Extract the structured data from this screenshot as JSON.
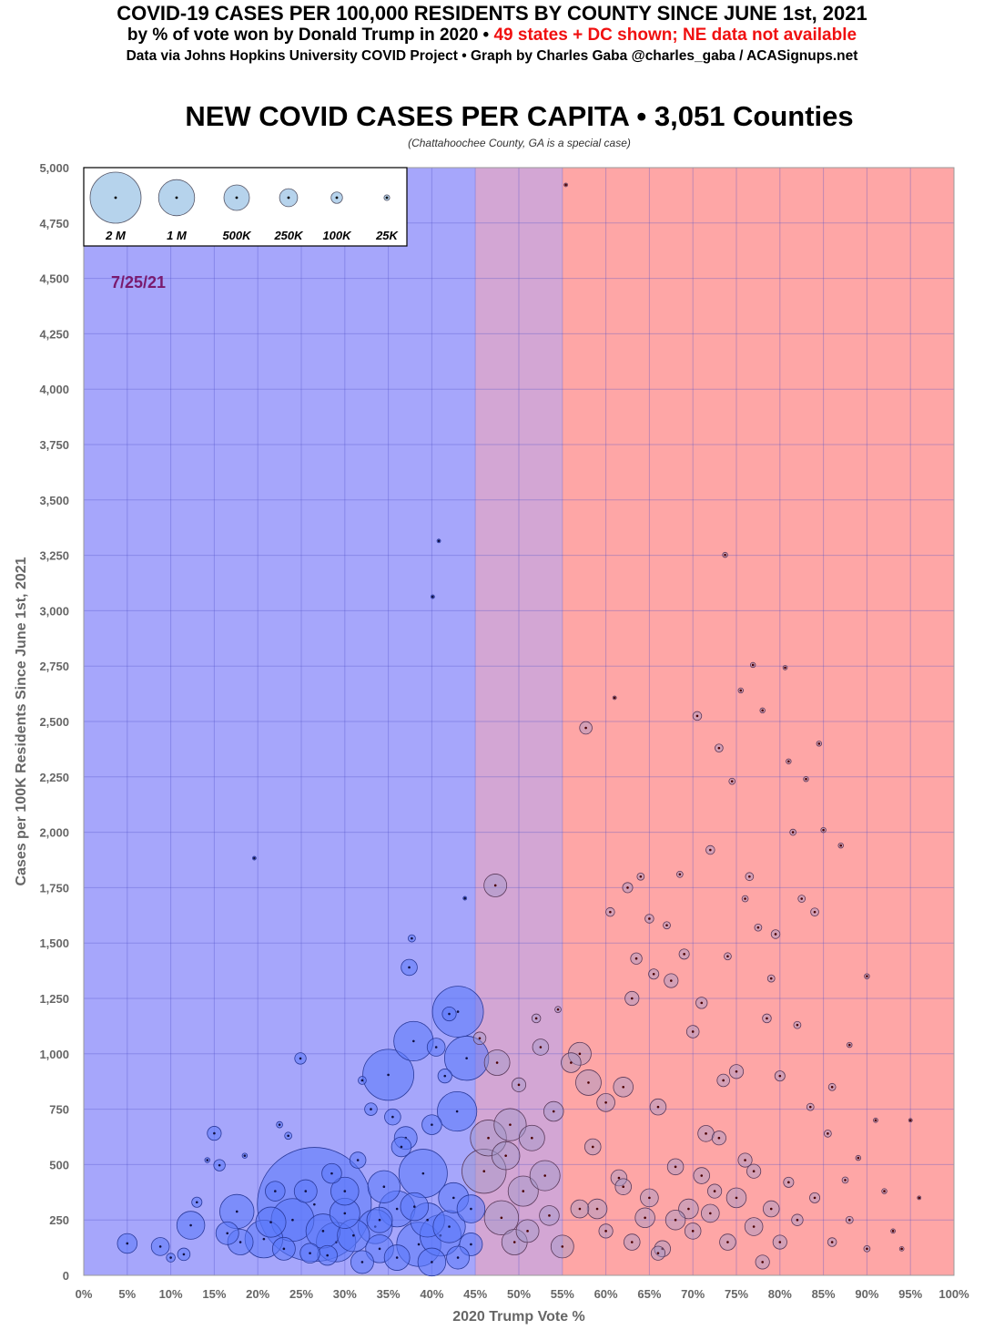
{
  "header": {
    "title": "COVID-19 CASES PER 100,000 RESIDENTS BY COUNTY SINCE JUNE 1st, 2021",
    "subtitle_black": "by % of vote won by Donald Trump in 2020 •",
    "subtitle_red": "49 states + DC shown; NE data not available",
    "credits": "Data via Johns Hopkins University COVID Project • Graph by Charles Gaba @charles_gaba / ACASignups.net",
    "chart_title": "NEW COVID CASES PER CAPITA • 3,051 Counties",
    "note": "(Chattahoochee County, GA is a special case)"
  },
  "colors": {
    "dem_zone": "#a6a6fb",
    "swing_zone": "#d3a6d4",
    "gop_zone": "#fea6a6",
    "bubble_fill": "#6e86f0",
    "date": "#7a1a6e"
  },
  "chart_data": {
    "type": "scatter",
    "title": "NEW COVID CASES PER CAPITA • 3,051 Counties",
    "xlabel": "2020 Trump Vote %",
    "ylabel": "Cases per 100K Residents Since June 1st, 2021",
    "xlim": [
      0,
      100
    ],
    "ylim": [
      0,
      5000
    ],
    "x_ticks": [
      "0%",
      "5%",
      "10%",
      "15%",
      "20%",
      "25%",
      "30%",
      "35%",
      "40%",
      "45%",
      "50%",
      "55%",
      "60%",
      "65%",
      "70%",
      "75%",
      "80%",
      "85%",
      "90%",
      "95%",
      "100%"
    ],
    "y_ticks": [
      "0",
      "250",
      "500",
      "750",
      "1,000",
      "1,250",
      "1,500",
      "1,750",
      "2,000",
      "2,250",
      "2,500",
      "2,750",
      "3,000",
      "3,250",
      "3,500",
      "3,750",
      "4,000",
      "4,250",
      "4,500",
      "4,750",
      "5,000"
    ],
    "grid": true,
    "zones": [
      {
        "name": "dem",
        "from": 0,
        "to": 45
      },
      {
        "name": "swing",
        "from": 45,
        "to": 55
      },
      {
        "name": "gop",
        "from": 55,
        "to": 100
      }
    ],
    "annotation": "7/25/21",
    "size_legend": {
      "placement": "top-left",
      "entries": [
        {
          "label": "2 M",
          "population_k": 2000
        },
        {
          "label": "1 M",
          "population_k": 1000
        },
        {
          "label": "500K",
          "population_k": 500
        },
        {
          "label": "250K",
          "population_k": 250
        },
        {
          "label": "100K",
          "population_k": 100
        },
        {
          "label": "25K",
          "population_k": 25
        }
      ]
    },
    "point_fields": [
      "trump_vote_pct",
      "cases_per_100k",
      "population_k"
    ],
    "points": [
      [
        5,
        144,
        300
      ],
      [
        8.8,
        130,
        250
      ],
      [
        10,
        80,
        60
      ],
      [
        11.5,
        95,
        120
      ],
      [
        12.3,
        226,
        600
      ],
      [
        13,
        330,
        80
      ],
      [
        14.2,
        520,
        20
      ],
      [
        15,
        641,
        150
      ],
      [
        15.6,
        497,
        100
      ],
      [
        16.5,
        190,
        400
      ],
      [
        17.6,
        288,
        900
      ],
      [
        18,
        150,
        500
      ],
      [
        18.5,
        540,
        20
      ],
      [
        19.6,
        1883,
        10
      ],
      [
        20.7,
        164,
        1100
      ],
      [
        21.5,
        240,
        700
      ],
      [
        22,
        380,
        300
      ],
      [
        22.5,
        680,
        30
      ],
      [
        23,
        120,
        400
      ],
      [
        23.5,
        630,
        40
      ],
      [
        24,
        250,
        1400
      ],
      [
        24.9,
        979,
        100
      ],
      [
        25.5,
        380,
        400
      ],
      [
        26.5,
        320,
        10000
      ],
      [
        27.5,
        200,
        900
      ],
      [
        28.5,
        460,
        300
      ],
      [
        29,
        150,
        1200
      ],
      [
        30,
        280,
        700
      ],
      [
        31,
        180,
        800
      ],
      [
        31.5,
        520,
        200
      ],
      [
        32,
        880,
        50
      ],
      [
        33,
        750,
        120
      ],
      [
        33.5,
        220,
        900
      ],
      [
        34,
        120,
        600
      ],
      [
        34.5,
        400,
        800
      ],
      [
        35,
        905,
        2000
      ],
      [
        35.5,
        715,
        200
      ],
      [
        36,
        300,
        1000
      ],
      [
        36.5,
        580,
        300
      ],
      [
        37,
        620,
        400
      ],
      [
        37.4,
        1390,
        200
      ],
      [
        37.7,
        1521,
        40
      ],
      [
        37.9,
        1057,
        1200
      ],
      [
        38.5,
        140,
        1500
      ],
      [
        39,
        460,
        1800
      ],
      [
        39.5,
        250,
        900
      ],
      [
        40,
        680,
        300
      ],
      [
        40.1,
        3063,
        10
      ],
      [
        40.5,
        1030,
        250
      ],
      [
        40.8,
        3315,
        10
      ],
      [
        41,
        180,
        1300
      ],
      [
        41.5,
        900,
        150
      ],
      [
        42,
        1180,
        150
      ],
      [
        42.5,
        350,
        700
      ],
      [
        42.9,
        740,
        1200
      ],
      [
        43,
        1190,
        2000
      ],
      [
        43.8,
        1702,
        10
      ],
      [
        44,
        980,
        1500
      ],
      [
        44.5,
        300,
        600
      ],
      [
        44.5,
        140,
        400
      ],
      [
        28,
        90,
        300
      ],
      [
        32,
        60,
        400
      ],
      [
        36,
        80,
        500
      ],
      [
        40,
        60,
        600
      ],
      [
        43,
        80,
        400
      ],
      [
        26,
        100,
        300
      ],
      [
        30,
        380,
        600
      ],
      [
        34,
        250,
        500
      ],
      [
        38,
        310,
        600
      ],
      [
        42,
        220,
        800
      ],
      [
        45.5,
        1070,
        120
      ],
      [
        46,
        470,
        1500
      ],
      [
        46.5,
        620,
        1000
      ],
      [
        47.3,
        1760,
        400
      ],
      [
        47.5,
        960,
        500
      ],
      [
        48,
        260,
        900
      ],
      [
        48.5,
        540,
        600
      ],
      [
        49,
        680,
        800
      ],
      [
        49.5,
        150,
        500
      ],
      [
        50,
        860,
        150
      ],
      [
        50.5,
        380,
        700
      ],
      [
        51,
        200,
        400
      ],
      [
        51.5,
        620,
        500
      ],
      [
        52,
        1160,
        60
      ],
      [
        52.5,
        1030,
        200
      ],
      [
        53,
        450,
        700
      ],
      [
        53.5,
        270,
        300
      ],
      [
        54,
        740,
        300
      ],
      [
        54.5,
        1200,
        30
      ],
      [
        55.4,
        4922,
        10
      ],
      [
        55,
        130,
        400
      ],
      [
        56,
        960,
        300
      ],
      [
        57,
        1000,
        400
      ],
      [
        57.7,
        2471,
        120
      ],
      [
        58,
        870,
        500
      ],
      [
        58.5,
        580,
        200
      ],
      [
        59,
        300,
        300
      ],
      [
        60,
        780,
        250
      ],
      [
        60.5,
        1640,
        60
      ],
      [
        61,
        2607,
        10
      ],
      [
        61.5,
        440,
        200
      ],
      [
        62,
        850,
        300
      ],
      [
        62.5,
        1750,
        80
      ],
      [
        63,
        1250,
        150
      ],
      [
        63.5,
        1430,
        100
      ],
      [
        64,
        1800,
        40
      ],
      [
        64.5,
        260,
        300
      ],
      [
        65,
        1610,
        60
      ],
      [
        65.5,
        1360,
        80
      ],
      [
        66,
        760,
        200
      ],
      [
        66.5,
        120,
        200
      ],
      [
        67,
        1580,
        40
      ],
      [
        67.5,
        1330,
        150
      ],
      [
        68,
        490,
        200
      ],
      [
        68.5,
        1810,
        30
      ],
      [
        69,
        1450,
        80
      ],
      [
        69.5,
        300,
        300
      ],
      [
        70,
        1100,
        120
      ],
      [
        70.5,
        2525,
        60
      ],
      [
        71,
        1230,
        100
      ],
      [
        71.5,
        640,
        200
      ],
      [
        72,
        1920,
        60
      ],
      [
        72.5,
        380,
        150
      ],
      [
        73,
        2380,
        50
      ],
      [
        73.5,
        880,
        120
      ],
      [
        74,
        1440,
        40
      ],
      [
        74.5,
        2230,
        30
      ],
      [
        75,
        920,
        150
      ],
      [
        75.5,
        2640,
        20
      ],
      [
        76,
        1700,
        30
      ],
      [
        76.5,
        1800,
        50
      ],
      [
        76.9,
        2755,
        20
      ],
      [
        77,
        470,
        150
      ],
      [
        77.5,
        1570,
        40
      ],
      [
        78,
        2550,
        20
      ],
      [
        78.5,
        1160,
        60
      ],
      [
        79,
        1340,
        40
      ],
      [
        79.5,
        1540,
        60
      ],
      [
        80,
        900,
        80
      ],
      [
        80.6,
        2743,
        15
      ],
      [
        81,
        2320,
        20
      ],
      [
        81.5,
        2000,
        30
      ],
      [
        82,
        1130,
        40
      ],
      [
        82.5,
        1700,
        40
      ],
      [
        83,
        2240,
        20
      ],
      [
        83.5,
        760,
        40
      ],
      [
        84,
        1640,
        50
      ],
      [
        84.5,
        2400,
        20
      ],
      [
        85,
        2010,
        20
      ],
      [
        85.5,
        640,
        40
      ],
      [
        86,
        850,
        40
      ],
      [
        87,
        1940,
        20
      ],
      [
        87.5,
        430,
        30
      ],
      [
        88,
        1040,
        20
      ],
      [
        89,
        530,
        20
      ],
      [
        90,
        1350,
        20
      ],
      [
        91,
        700,
        15
      ],
      [
        92,
        380,
        20
      ],
      [
        93,
        200,
        15
      ],
      [
        94,
        120,
        15
      ],
      [
        96,
        350,
        10
      ],
      [
        95,
        700,
        10
      ],
      [
        73.7,
        3252,
        20
      ],
      [
        60,
        200,
        150
      ],
      [
        63,
        150,
        200
      ],
      [
        65,
        350,
        250
      ],
      [
        68,
        250,
        300
      ],
      [
        70,
        200,
        200
      ],
      [
        72,
        280,
        250
      ],
      [
        74,
        150,
        200
      ],
      [
        75,
        350,
        300
      ],
      [
        77,
        220,
        250
      ],
      [
        79,
        300,
        200
      ],
      [
        80,
        150,
        150
      ],
      [
        82,
        250,
        100
      ],
      [
        84,
        350,
        80
      ],
      [
        86,
        150,
        60
      ],
      [
        88,
        250,
        40
      ],
      [
        90,
        120,
        30
      ],
      [
        57,
        300,
        250
      ],
      [
        62,
        400,
        200
      ],
      [
        66,
        100,
        150
      ],
      [
        71,
        450,
        200
      ],
      [
        76,
        520,
        150
      ],
      [
        78,
        60,
        150
      ],
      [
        73,
        620,
        150
      ],
      [
        81,
        420,
        80
      ]
    ]
  }
}
